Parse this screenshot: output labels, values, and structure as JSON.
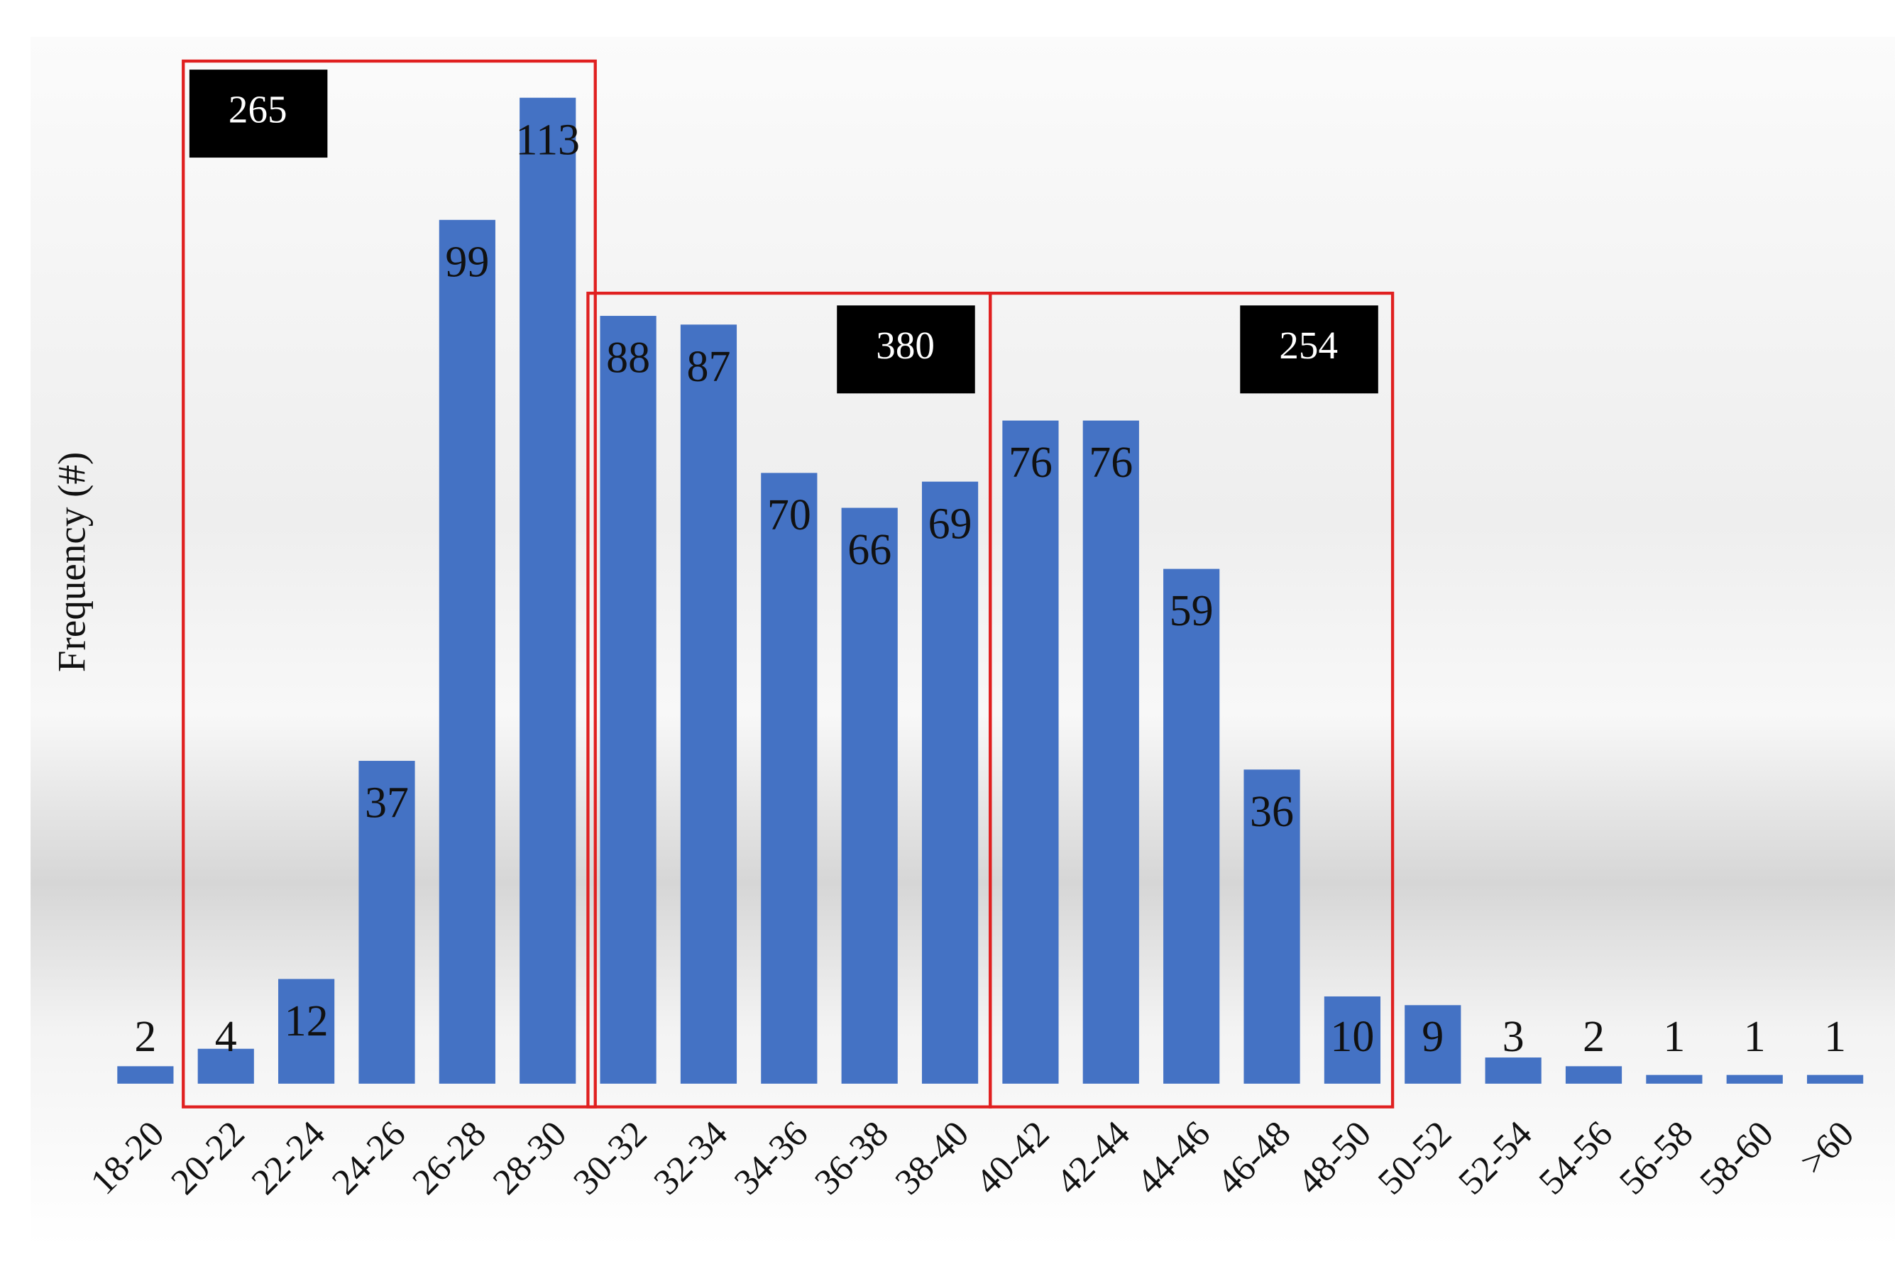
{
  "chart_data": {
    "type": "bar",
    "y_label": "Frequency (#)",
    "categories": [
      "18-20",
      "20-22",
      "22-24",
      "24-26",
      "26-28",
      "28-30",
      "30-32",
      "32-34",
      "34-36",
      "36-38",
      "38-40",
      "40-42",
      "42-44",
      "44-46",
      "46-48",
      "48-50",
      "50-52",
      "52-54",
      "54-56",
      "56-58",
      "58-60",
      ">60"
    ],
    "values": [
      2,
      4,
      12,
      37,
      99,
      113,
      88,
      87,
      70,
      66,
      69,
      76,
      76,
      59,
      36,
      10,
      9,
      3,
      2,
      1,
      1,
      1
    ],
    "color": "#4472c4",
    "ylim": [
      0,
      113
    ],
    "annotations": [
      "265",
      "380",
      "254"
    ],
    "annotation_box_color": "#e02020"
  }
}
